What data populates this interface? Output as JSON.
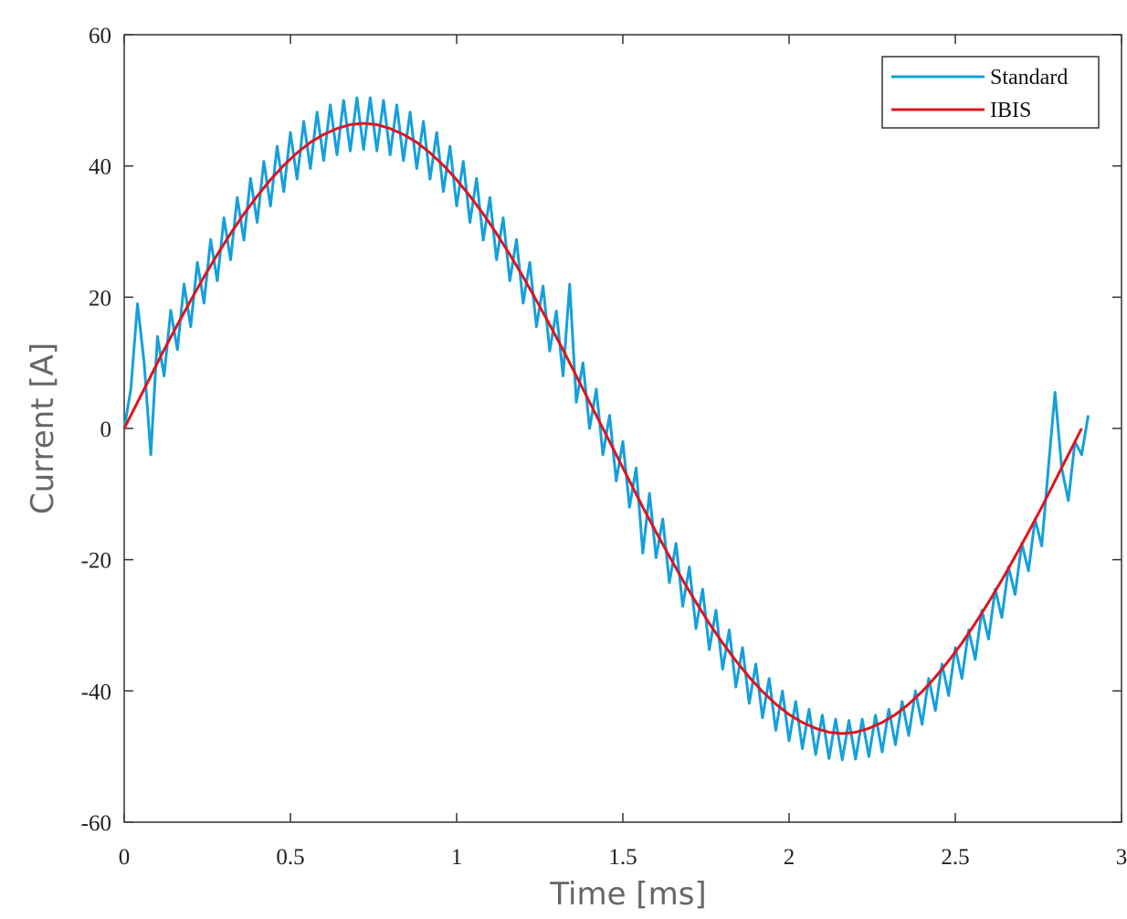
{
  "chart_data": {
    "type": "line",
    "xlabel": "Time [ms]",
    "ylabel": "Current [A]",
    "xlim": [
      0,
      3
    ],
    "ylim": [
      -60,
      60
    ],
    "xticks": [
      0,
      0.5,
      1,
      1.5,
      2,
      2.5,
      3
    ],
    "yticks": [
      -60,
      -40,
      -20,
      0,
      20,
      40,
      60
    ],
    "legend": "upper right",
    "series": [
      {
        "name": "Standard",
        "color": "#14a0dc",
        "x": [
          0,
          0.02,
          0.04,
          0.06,
          0.08,
          0.1,
          0.12,
          0.14,
          0.16,
          0.18,
          0.2,
          0.22,
          0.24,
          0.26,
          0.28,
          0.3,
          0.32,
          0.34,
          0.36,
          0.38,
          0.4,
          0.42,
          0.44,
          0.46,
          0.48,
          0.5,
          0.52,
          0.54,
          0.56,
          0.58,
          0.6,
          0.62,
          0.64,
          0.66,
          0.68,
          0.7,
          0.72,
          0.74,
          0.76,
          0.78,
          0.8,
          0.82,
          0.84,
          0.86,
          0.88,
          0.9,
          0.92,
          0.94,
          0.96,
          0.98,
          1,
          1.02,
          1.04,
          1.06,
          1.08,
          1.1,
          1.12,
          1.14,
          1.16,
          1.18,
          1.2,
          1.22,
          1.24,
          1.26,
          1.28,
          1.3,
          1.32,
          1.34,
          1.36,
          1.38,
          1.4,
          1.42,
          1.44,
          1.46,
          1.48,
          1.5,
          1.52,
          1.54,
          1.56,
          1.58,
          1.6,
          1.62,
          1.64,
          1.66,
          1.68,
          1.7,
          1.72,
          1.74,
          1.76,
          1.78,
          1.8,
          1.82,
          1.84,
          1.86,
          1.88,
          1.9,
          1.92,
          1.94,
          1.96,
          1.98,
          2,
          2.02,
          2.04,
          2.06,
          2.08,
          2.1,
          2.12,
          2.14,
          2.16,
          2.18,
          2.2,
          2.22,
          2.24,
          2.26,
          2.28,
          2.3,
          2.32,
          2.34,
          2.36,
          2.38,
          2.4,
          2.42,
          2.44,
          2.46,
          2.48,
          2.5,
          2.52,
          2.54,
          2.56,
          2.58,
          2.6,
          2.62,
          2.64,
          2.66,
          2.68,
          2.7,
          2.72,
          2.74,
          2.76,
          2.78,
          2.8,
          2.82,
          2.84,
          2.86,
          2.88,
          2.9
        ],
        "values": [
          0,
          6,
          19,
          10,
          -4,
          14,
          8,
          18,
          12,
          22,
          15.5,
          25.3,
          19.1,
          28.8,
          22.5,
          32.1,
          25.7,
          35.2,
          28.7,
          38.1,
          31.4,
          40.7,
          33.9,
          43,
          36.1,
          45.1,
          38,
          46.8,
          39.6,
          48.2,
          40.8,
          49.3,
          41.7,
          50,
          42.3,
          50.4,
          42.5,
          50.4,
          42.3,
          50,
          41.7,
          49.3,
          40.8,
          48.2,
          39.6,
          46.8,
          38,
          45.1,
          36.1,
          43,
          33.9,
          40.7,
          31.4,
          38.1,
          28.7,
          35.2,
          25.7,
          32.1,
          22.5,
          28.8,
          19.1,
          25.3,
          15.5,
          21.7,
          11.8,
          17.9,
          8,
          22,
          4,
          10,
          0,
          6,
          -4,
          2,
          -8,
          -2,
          -12,
          -6,
          -19,
          -9.9,
          -19.7,
          -13.8,
          -23.5,
          -17.5,
          -27.1,
          -21.1,
          -30.5,
          -24.5,
          -33.7,
          -27.7,
          -36.7,
          -30.7,
          -39.4,
          -33.4,
          -41.9,
          -35.9,
          -44.1,
          -38.1,
          -46,
          -40,
          -47.6,
          -41.6,
          -48.8,
          -42.8,
          -49.7,
          -43.7,
          -50.3,
          -44.3,
          -50.5,
          -44.5,
          -50.4,
          -44.3,
          -50,
          -43.7,
          -49.3,
          -42.8,
          -48.2,
          -41.6,
          -46.8,
          -40,
          -45.1,
          -38.1,
          -43,
          -35.9,
          -40.7,
          -33.4,
          -38.1,
          -30.7,
          -35.2,
          -27.7,
          -32.1,
          -24.5,
          -28.8,
          -21.1,
          -25.3,
          -17.5,
          -21.7,
          -13.8,
          -17.9,
          -6,
          5.5,
          -6,
          -11,
          -2,
          -4,
          2
        ]
      },
      {
        "name": "IBIS",
        "color": "#e0141e",
        "x": [
          0,
          0.04,
          0.08,
          0.12,
          0.16,
          0.2,
          0.24,
          0.28,
          0.32,
          0.36,
          0.4,
          0.44,
          0.48,
          0.52,
          0.56,
          0.6,
          0.64,
          0.68,
          0.72,
          0.76,
          0.8,
          0.84,
          0.88,
          0.92,
          0.96,
          1,
          1.04,
          1.08,
          1.12,
          1.16,
          1.2,
          1.24,
          1.28,
          1.32,
          1.36,
          1.4,
          1.44,
          1.48,
          1.52,
          1.56,
          1.6,
          1.64,
          1.68,
          1.72,
          1.76,
          1.8,
          1.84,
          1.88,
          1.92,
          1.96,
          2,
          2.04,
          2.08,
          2.12,
          2.16,
          2.2,
          2.24,
          2.28,
          2.32,
          2.36,
          2.4,
          2.44,
          2.48,
          2.52,
          2.56,
          2.6,
          2.64,
          2.68,
          2.72,
          2.76,
          2.8,
          2.84,
          2.88
        ],
        "values": [
          0,
          4,
          8,
          12,
          15.8,
          19.5,
          23.1,
          26.5,
          29.7,
          32.7,
          35.4,
          37.9,
          40.1,
          42,
          43.6,
          44.8,
          45.7,
          46.3,
          46.5,
          46.3,
          45.7,
          44.8,
          43.6,
          42,
          40.1,
          37.9,
          35.4,
          32.7,
          29.7,
          26.5,
          23.1,
          19.5,
          15.8,
          12,
          8,
          4,
          0,
          -4,
          -8,
          -12,
          -15.8,
          -19.5,
          -23.1,
          -26.5,
          -29.7,
          -32.7,
          -35.4,
          -37.9,
          -40.1,
          -42,
          -43.6,
          -44.8,
          -45.7,
          -46.3,
          -46.5,
          -46.3,
          -45.7,
          -44.8,
          -43.6,
          -42,
          -40.1,
          -37.9,
          -35.4,
          -32.7,
          -29.7,
          -26.5,
          -23.1,
          -19.5,
          -15.8,
          -12,
          -8,
          -4,
          0
        ]
      }
    ]
  }
}
